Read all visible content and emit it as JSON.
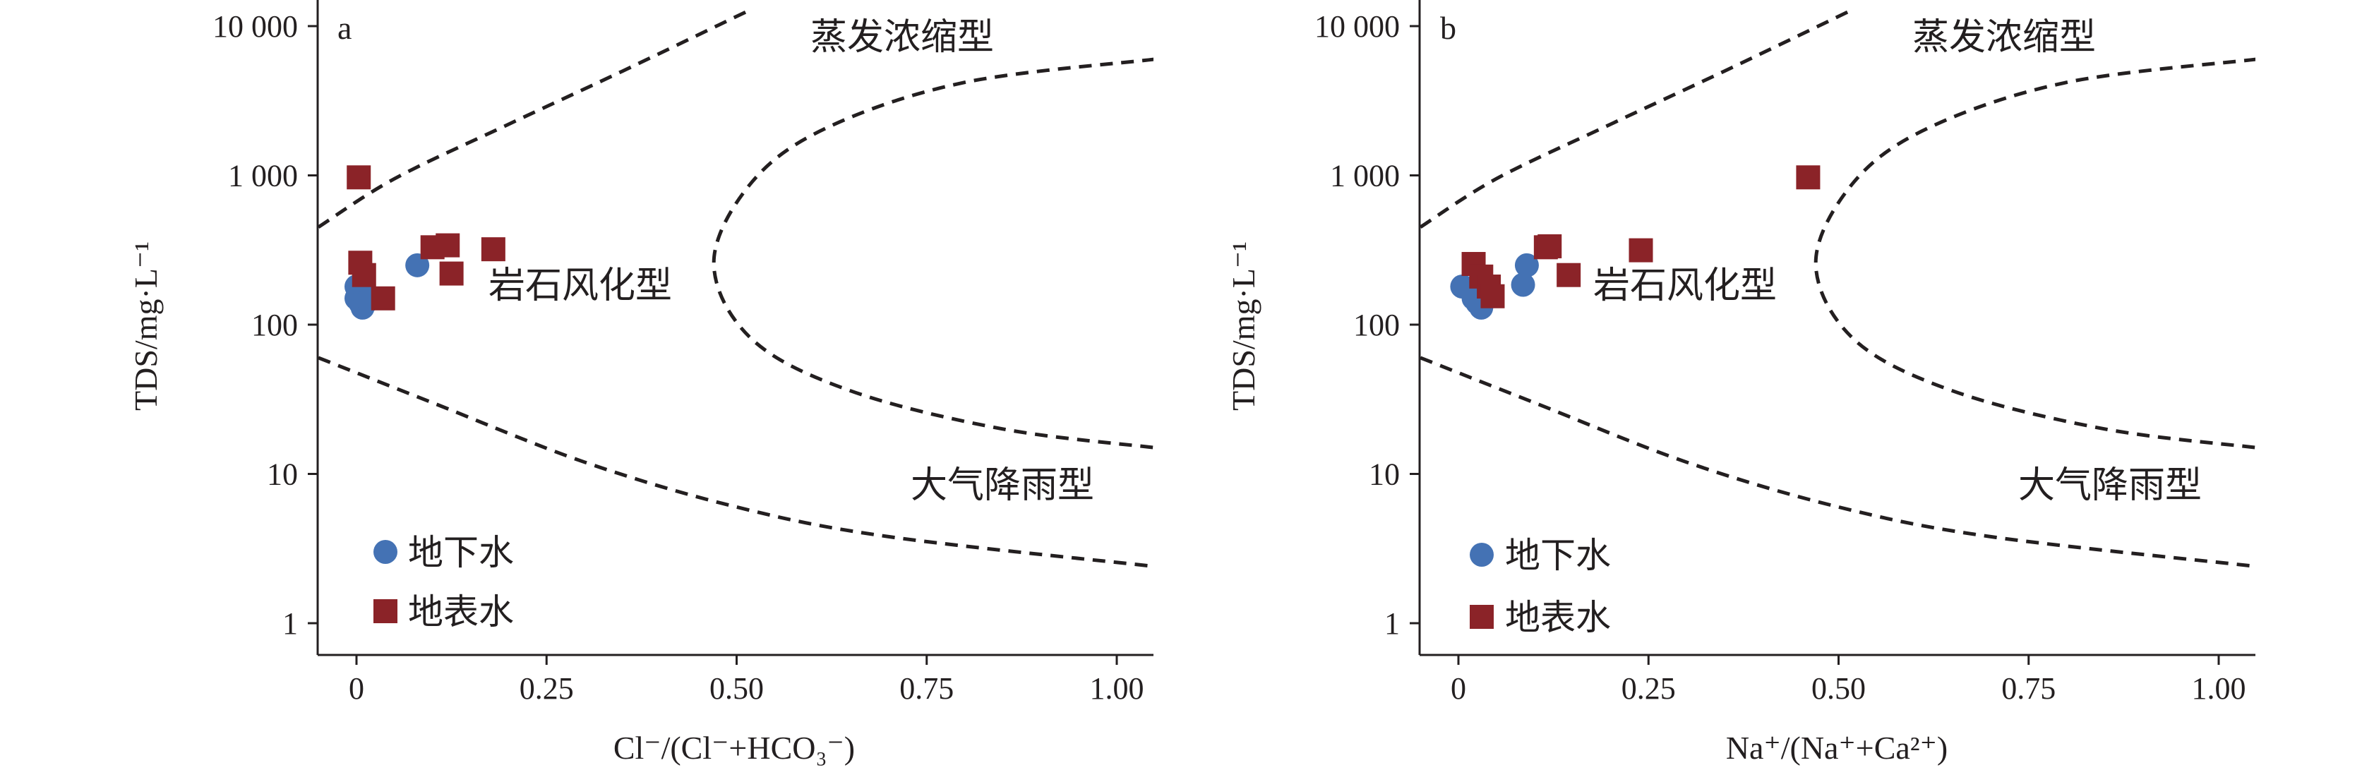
{
  "chart_data": [
    {
      "type": "scatter",
      "panel_label": "a",
      "xlabel": "Cl⁻/(Cl⁻+HCO₃⁻)",
      "ylabel": "TDS/mg·L⁻¹",
      "xlim": [
        -0.05,
        1.05
      ],
      "ylim": [
        0.5,
        15000
      ],
      "yscale": "log",
      "x_ticks": [
        0,
        0.25,
        0.5,
        0.75,
        1.0
      ],
      "x_tick_labels": [
        "0",
        "0.25",
        "0.50",
        "0.75",
        "1.00"
      ],
      "y_ticks": [
        1,
        10,
        100,
        1000,
        10000
      ],
      "y_tick_labels": [
        "1",
        "10",
        "100",
        "1 000",
        "10 000"
      ],
      "region_labels": [
        "蒸发浓缩型",
        "岩石风化型",
        "大气降雨型"
      ],
      "legend": {
        "placement": "bottom-left",
        "entries": [
          "地下水",
          "地表水"
        ]
      },
      "series": [
        {
          "name": "地下水",
          "color": "#4472b4",
          "marker": "circle",
          "points": [
            [
              0.0,
              180
            ],
            [
              0.0,
              150
            ],
            [
              0.005,
              140
            ],
            [
              0.008,
              130
            ],
            [
              0.012,
              160
            ],
            [
              0.015,
              145
            ],
            [
              0.08,
              250
            ]
          ]
        },
        {
          "name": "地表水",
          "color": "#8b2328",
          "marker": "square",
          "points": [
            [
              0.003,
              970
            ],
            [
              0.005,
              260
            ],
            [
              0.01,
              215
            ],
            [
              0.035,
              150
            ],
            [
              0.1,
              330
            ],
            [
              0.12,
              340
            ],
            [
              0.125,
              220
            ],
            [
              0.18,
              320
            ]
          ]
        }
      ]
    },
    {
      "type": "scatter",
      "panel_label": "b",
      "xlabel": "Na⁺/(Na⁺+Ca²⁺)",
      "ylabel": "TDS/mg·L⁻¹",
      "xlim": [
        -0.05,
        1.05
      ],
      "ylim": [
        0.5,
        15000
      ],
      "yscale": "log",
      "x_ticks": [
        0,
        0.25,
        0.5,
        0.75,
        1.0
      ],
      "x_tick_labels": [
        "0",
        "0.25",
        "0.50",
        "0.75",
        "1.00"
      ],
      "y_ticks": [
        1,
        10,
        100,
        1000,
        10000
      ],
      "y_tick_labels": [
        "1",
        "10",
        "100",
        "1 000",
        "10 000"
      ],
      "region_labels": [
        "蒸发浓缩型",
        "岩石风化型",
        "大气降雨型"
      ],
      "legend": {
        "placement": "bottom-left",
        "entries": [
          "地下水",
          "地表水"
        ]
      },
      "series": [
        {
          "name": "地下水",
          "color": "#4472b4",
          "marker": "circle",
          "points": [
            [
              0.005,
              180
            ],
            [
              0.02,
              150
            ],
            [
              0.025,
              140
            ],
            [
              0.03,
              130
            ],
            [
              0.085,
              185
            ],
            [
              0.09,
              250
            ]
          ]
        },
        {
          "name": "地表水",
          "color": "#8b2328",
          "marker": "square",
          "points": [
            [
              0.02,
              255
            ],
            [
              0.03,
              210
            ],
            [
              0.04,
              180
            ],
            [
              0.045,
              155
            ],
            [
              0.115,
              330
            ],
            [
              0.12,
              335
            ],
            [
              0.145,
              215
            ],
            [
              0.24,
              315
            ],
            [
              0.46,
              970
            ]
          ]
        }
      ]
    }
  ]
}
